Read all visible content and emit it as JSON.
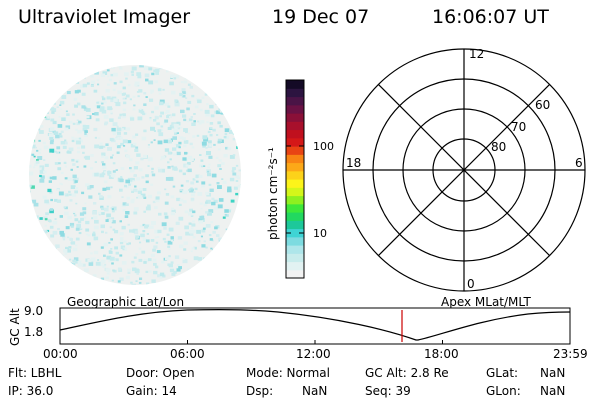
{
  "header": {
    "title": "Ultraviolet Imager",
    "date": "19 Dec 07",
    "time": "16:06:07 UT"
  },
  "colorbar": {
    "label": "photon cm⁻²s⁻¹",
    "ticks": [
      "100",
      "10"
    ],
    "colors": [
      "#f2f2f2",
      "#e2f2f2",
      "#c8ecec",
      "#aee6ea",
      "#7ddbe0",
      "#3fd4d4",
      "#1dc89a",
      "#22d860",
      "#3ee83a",
      "#8ef020",
      "#d4f61a",
      "#fcf41a",
      "#fcd21a",
      "#fca818",
      "#f88414",
      "#e84414",
      "#d41818",
      "#c0101e",
      "#a8102c",
      "#8a1038",
      "#6a1244",
      "#4a1446",
      "#2c1440",
      "#140a26"
    ]
  },
  "polar_plot": {
    "ring_labels": [
      "80",
      "70",
      "60"
    ],
    "mlt_labels": {
      "top": "12",
      "left": "18",
      "right": "6",
      "bottom": "0"
    }
  },
  "timeline": {
    "left_label": "Geographic Lat/Lon",
    "right_label": "Apex MLat/MLT",
    "axis_title": "GC Alt",
    "y_ticks": [
      "9.0",
      "1.8"
    ],
    "x_ticks": [
      "00:00",
      "06:00",
      "12:00",
      "18:00",
      "23:59"
    ],
    "marker_color": "#cc0000"
  },
  "status": {
    "flt": "Flt: LBHL",
    "ip": "IP: 36.0",
    "door": "Door: Open",
    "gain": "Gain: 14",
    "mode": "Mode: Normal",
    "dsp_label": "Dsp:",
    "dsp_value": "NaN",
    "gc_alt": "GC Alt: 2.8 Re",
    "seq": "Seq: 39",
    "glat_label": "GLat:",
    "glat_value": "NaN",
    "glon_label": "GLon:",
    "glon_value": "NaN"
  }
}
